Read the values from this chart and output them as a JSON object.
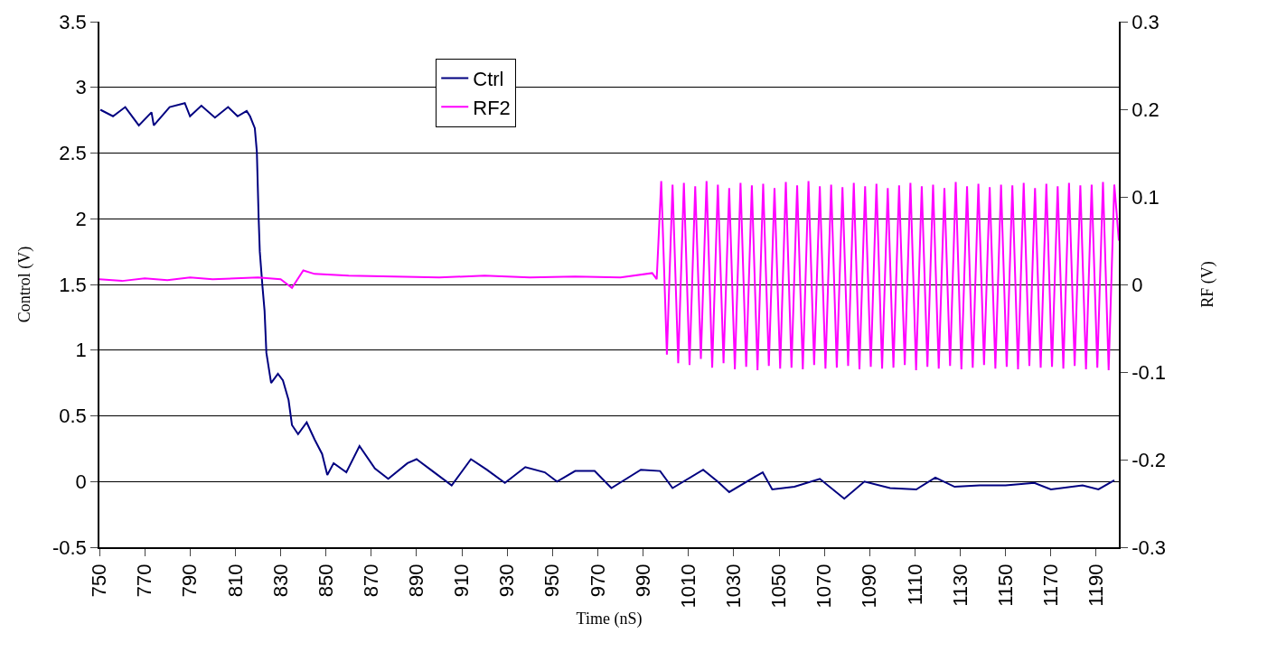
{
  "chart_data": {
    "type": "line",
    "xlabel": "Time (nS)",
    "ylabel": "Control (V)",
    "y2label": "RF (V)",
    "xlim": [
      750,
      1200
    ],
    "xticks": [
      750,
      770,
      790,
      810,
      830,
      850,
      870,
      890,
      910,
      930,
      950,
      970,
      990,
      1010,
      1030,
      1050,
      1070,
      1090,
      1110,
      1130,
      1150,
      1170,
      1190
    ],
    "ylim": [
      -0.5,
      3.5
    ],
    "yticks": [
      -0.5,
      0,
      0.5,
      1,
      1.5,
      2,
      2.5,
      3,
      3.5
    ],
    "y2lim": [
      -0.3,
      0.3
    ],
    "y2ticks": [
      -0.3,
      -0.2,
      -0.1,
      0,
      0.1,
      0.2,
      0.3
    ],
    "grid": "y",
    "legend": "top",
    "marker": "none",
    "line_style": "solid",
    "series": [
      {
        "name": "Ctrl",
        "color": "#000080",
        "x": [
          750.4,
          756,
          761.4,
          767.4,
          773,
          774,
          781,
          787.7,
          790,
          795,
          801,
          806.8,
          811,
          815,
          816.5,
          818.6,
          819.5,
          820.3,
          820.8,
          822,
          822.9,
          823.7,
          825.8,
          828.8,
          831,
          833.5,
          835,
          837.7,
          841.5,
          845,
          848.3,
          850.6,
          853.4,
          859,
          864.8,
          871.6,
          877.5,
          886,
          890,
          897,
          905.5,
          914,
          921,
          929,
          938,
          946.6,
          952,
          960,
          968.6,
          976,
          989,
          997.5,
          1003,
          1016.5,
          1022.9,
          1028,
          1039.8,
          1042.8,
          1047,
          1056.8,
          1068,
          1078.8,
          1087.7,
          1099,
          1110.6,
          1119,
          1127.5,
          1138.6,
          1150,
          1162.7,
          1170,
          1184,
          1191,
          1198
        ],
        "values": [
          2.83,
          2.78,
          2.85,
          2.71,
          2.81,
          2.71,
          2.85,
          2.88,
          2.78,
          2.86,
          2.77,
          2.85,
          2.78,
          2.82,
          2.78,
          2.69,
          2.51,
          2.0,
          1.75,
          1.48,
          1.3,
          0.98,
          0.75,
          0.82,
          0.77,
          0.62,
          0.43,
          0.36,
          0.45,
          0.32,
          0.21,
          0.05,
          0.14,
          0.07,
          0.27,
          0.1,
          0.02,
          0.14,
          0.17,
          0.08,
          -0.03,
          0.17,
          0.09,
          -0.01,
          0.11,
          0.07,
          0.0,
          0.08,
          0.08,
          -0.05,
          0.09,
          0.08,
          -0.05,
          0.09,
          0.0,
          -0.08,
          0.04,
          0.07,
          -0.06,
          -0.04,
          0.02,
          -0.13,
          0.0,
          -0.05,
          -0.06,
          0.03,
          -0.04,
          -0.03,
          -0.03,
          -0.01,
          -0.06,
          -0.03,
          -0.06,
          0.01
        ]
      },
      {
        "name": "RF2",
        "color": "#ff00ff",
        "axis": "y2",
        "x": [
          750,
          760,
          770,
          780,
          790,
          800,
          810,
          820,
          830,
          835,
          840,
          845,
          860,
          880,
          900,
          920,
          940,
          960,
          980,
          994,
          996,
          998,
          1000.5,
          1003,
          1005.5,
          1008,
          1010.5,
          1013,
          1015.5,
          1018,
          1020.5,
          1023,
          1025.5,
          1028,
          1030.5,
          1033,
          1035.5,
          1038,
          1040.5,
          1043,
          1045.5,
          1048,
          1050.5,
          1053,
          1055.5,
          1058,
          1060.5,
          1063,
          1065.5,
          1068,
          1070.5,
          1073,
          1075.5,
          1078,
          1080.5,
          1083,
          1085.5,
          1088,
          1090.5,
          1093,
          1095.5,
          1098,
          1100.5,
          1103,
          1105.5,
          1108,
          1110.5,
          1113,
          1115.5,
          1118,
          1120.5,
          1123,
          1125.5,
          1128,
          1130.5,
          1133,
          1135.5,
          1138,
          1140.5,
          1143,
          1145.5,
          1148,
          1150.5,
          1153,
          1155.5,
          1158,
          1160.5,
          1163,
          1165.5,
          1168,
          1170.5,
          1173,
          1175.5,
          1178,
          1180.5,
          1183,
          1185.5,
          1188,
          1190.5,
          1193,
          1195.5,
          1198,
          1200
        ],
        "values": [
          0.006,
          0.004,
          0.007,
          0.005,
          0.008,
          0.006,
          0.007,
          0.008,
          0.006,
          -0.004,
          0.016,
          0.012,
          0.01,
          0.009,
          0.008,
          0.01,
          0.008,
          0.009,
          0.008,
          0.013,
          0.006,
          0.118,
          -0.08,
          0.114,
          -0.09,
          0.116,
          -0.092,
          0.112,
          -0.085,
          0.118,
          -0.095,
          0.114,
          -0.09,
          0.11,
          -0.097,
          0.116,
          -0.094,
          0.113,
          -0.098,
          0.115,
          -0.093,
          0.11,
          -0.096,
          0.117,
          -0.095,
          0.113,
          -0.097,
          0.118,
          -0.092,
          0.112,
          -0.096,
          0.114,
          -0.095,
          0.111,
          -0.093,
          0.116,
          -0.097,
          0.112,
          -0.094,
          0.115,
          -0.096,
          0.11,
          -0.095,
          0.113,
          -0.092,
          0.116,
          -0.098,
          0.112,
          -0.094,
          0.114,
          -0.096,
          0.11,
          -0.093,
          0.117,
          -0.097,
          0.112,
          -0.095,
          0.115,
          -0.092,
          0.111,
          -0.096,
          0.114,
          -0.094,
          0.113,
          -0.097,
          0.116,
          -0.093,
          0.11,
          -0.095,
          0.115,
          -0.094,
          0.112,
          -0.096,
          0.116,
          -0.093,
          0.113,
          -0.097,
          0.114,
          -0.095,
          0.117,
          -0.098,
          0.114,
          0.05
        ]
      }
    ]
  }
}
